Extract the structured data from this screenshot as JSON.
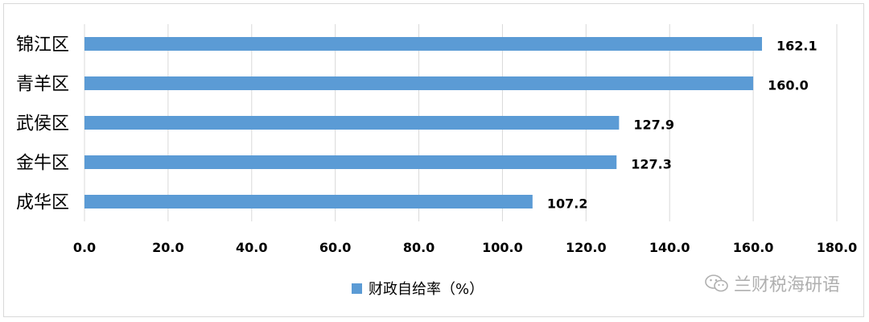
{
  "chart_data": {
    "type": "bar",
    "orientation": "horizontal",
    "categories": [
      "锦江区",
      "青羊区",
      "武侯区",
      "金牛区",
      "成华区"
    ],
    "series": [
      {
        "name": "财政自给率（%）",
        "values": [
          162.1,
          160.0,
          127.9,
          127.3,
          107.2
        ]
      }
    ],
    "value_labels": [
      "162.1",
      "160.0",
      "127.9",
      "127.3",
      "107.2"
    ],
    "xlim": [
      0,
      180
    ],
    "x_ticks": [
      "0.0",
      "20.0",
      "40.0",
      "60.0",
      "80.0",
      "100.0",
      "120.0",
      "140.0",
      "160.0",
      "180.0"
    ],
    "grid": "vertical",
    "legend_position": "bottom",
    "colors": {
      "bar": "#5B9BD5",
      "grid": "#d9d9d9"
    }
  },
  "watermark": {
    "text": "兰财税海研语",
    "icon": "wechat-icon"
  }
}
